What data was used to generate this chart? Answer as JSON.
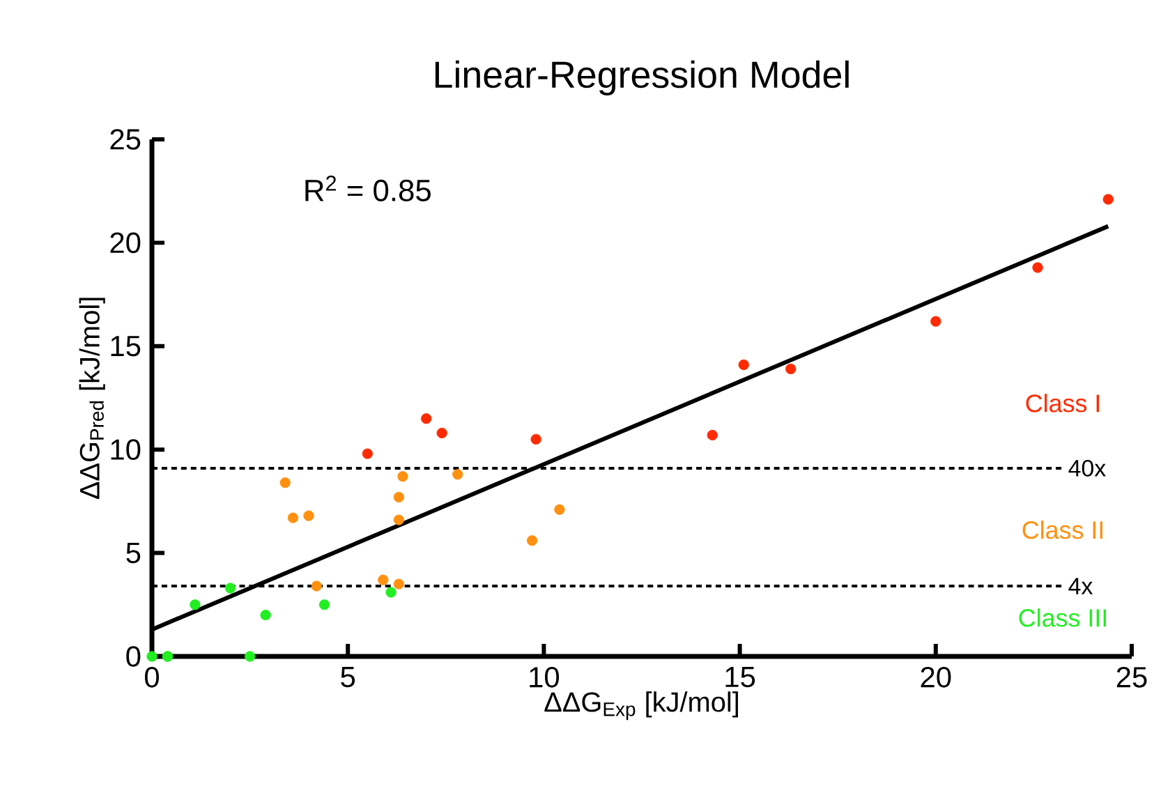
{
  "chart_data": {
    "type": "scatter",
    "title": "Linear-Regression Model",
    "xlabel": "ΔΔG$_{Exp}$ [kJ/mol]",
    "ylabel": "ΔΔG$_{Pred}$ [kJ/mol]",
    "xlim": [
      0,
      25
    ],
    "ylim": [
      0,
      25
    ],
    "xticks": [
      0,
      5,
      10,
      15,
      20,
      25
    ],
    "yticks": [
      0,
      5,
      10,
      15,
      20,
      25
    ],
    "grid": false,
    "marker": "circle",
    "annotations": [
      "R$^{2}$ = 0.85"
    ],
    "ref_lines": [
      {
        "axis": "y",
        "value": 9.1,
        "label": "40x",
        "line_style": "dashed"
      },
      {
        "axis": "y",
        "value": 3.4,
        "label": "4x",
        "line_style": "dashed"
      }
    ],
    "series": [
      {
        "name": "Class I",
        "color": "#ff2a00",
        "x": [
          7.0,
          7.4,
          5.5,
          9.8,
          14.3,
          15.1,
          16.3,
          20.0,
          22.6,
          24.4
        ],
        "values": [
          11.5,
          10.8,
          9.8,
          10.5,
          10.7,
          14.1,
          13.9,
          16.2,
          18.8,
          22.1
        ]
      },
      {
        "name": "Class II",
        "color": "#ff9010",
        "x": [
          3.4,
          3.6,
          4.0,
          6.4,
          6.3,
          6.3,
          7.8,
          10.4,
          9.7,
          4.2,
          5.9,
          6.3
        ],
        "values": [
          8.4,
          6.7,
          6.8,
          8.7,
          7.7,
          6.6,
          8.8,
          7.1,
          5.6,
          3.4,
          3.7,
          3.5
        ]
      },
      {
        "name": "Class III",
        "color": "#22ee22",
        "x": [
          2.0,
          1.1,
          2.9,
          4.4,
          6.1,
          0,
          0.4,
          0.4,
          2.5
        ],
        "values": [
          3.3,
          2.5,
          2.0,
          2.5,
          3.1,
          0,
          0,
          0,
          0
        ]
      },
      {
        "type": "line",
        "color": "#000000",
        "x": [
          0,
          24.4
        ],
        "values": [
          1.3,
          20.8
        ],
        "line_style": "solid",
        "marker": "none"
      }
    ]
  }
}
